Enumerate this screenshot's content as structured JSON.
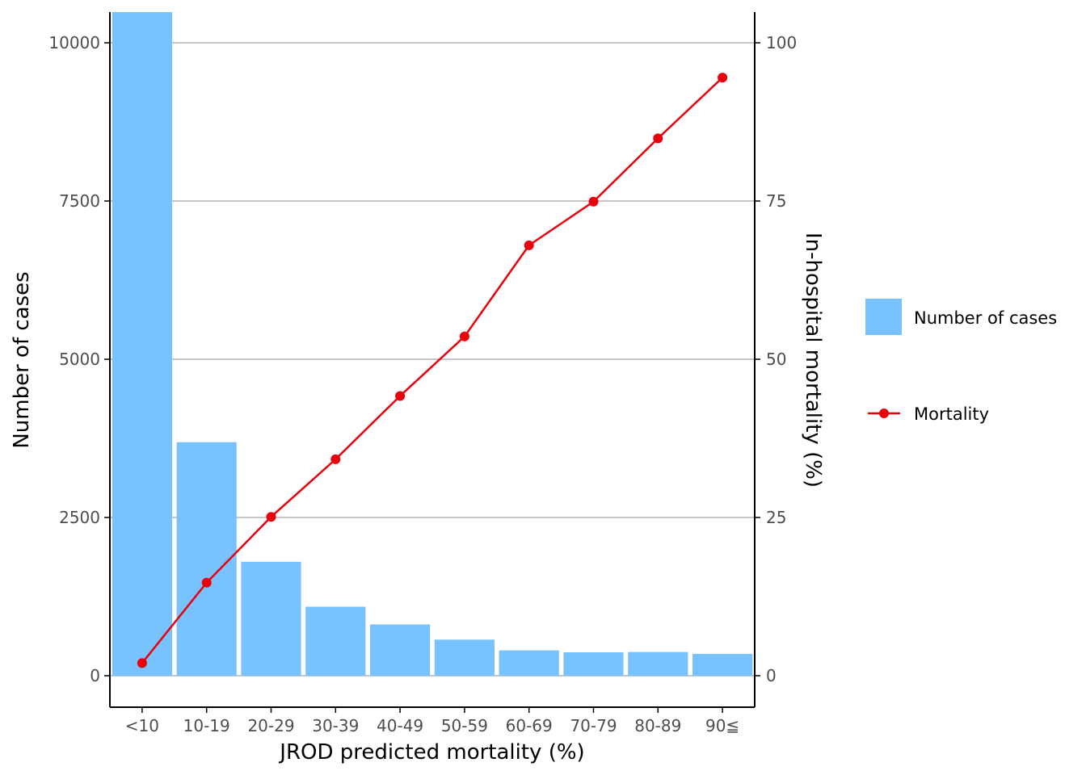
{
  "chart_data": {
    "type": "bar+line",
    "categories": [
      "<10",
      "10-19",
      "20-29",
      "30-39",
      "40-49",
      "50-59",
      "60-69",
      "70-79",
      "80-89",
      "90≦"
    ],
    "series": [
      {
        "name": "Number of cases",
        "type": "bar",
        "axis": "left",
        "color": "#78C2FF",
        "values": [
          10500,
          3690,
          1800,
          1090,
          810,
          570,
          400,
          370,
          375,
          345
        ]
      },
      {
        "name": "Mortality",
        "type": "line",
        "axis": "right",
        "color": "#E8000B",
        "values": [
          2,
          14.7,
          25.1,
          34.2,
          44.2,
          53.6,
          68.0,
          74.9,
          84.9,
          94.5
        ]
      }
    ],
    "xlabel": "JROD predicted mortality (%)",
    "ylabel": "Number of cases",
    "y2label": "In-hospital mortality (%)",
    "ylim": [
      0,
      10500
    ],
    "y2lim": [
      0,
      100
    ],
    "yticks": [
      "0",
      "2500",
      "5000",
      "7500",
      "10000"
    ],
    "y2ticks": [
      "0",
      "25",
      "50",
      "75",
      "100"
    ],
    "grid": "horizontal major lines",
    "legend_position": "right"
  }
}
